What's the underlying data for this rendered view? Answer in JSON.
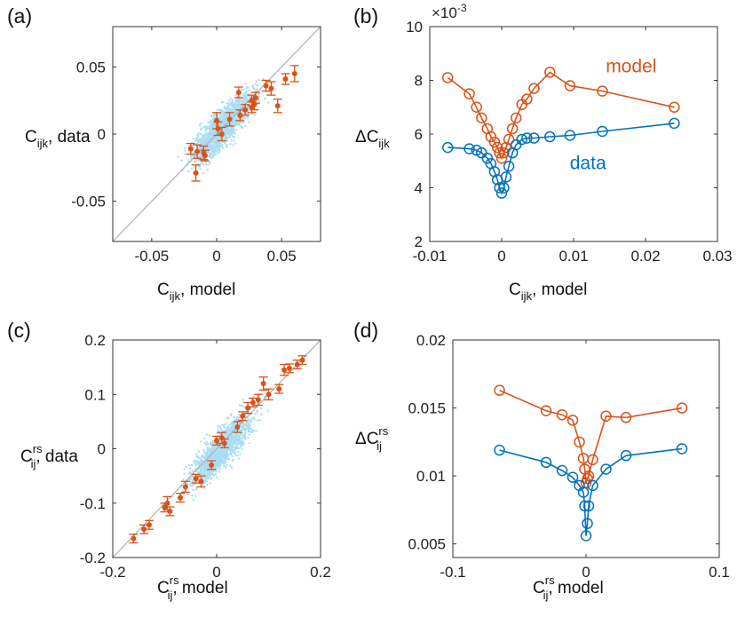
{
  "colors": {
    "model": "#d95319",
    "data": "#0072bd",
    "cloud": "#a9def5",
    "diag": "#b0b0b0"
  },
  "chart_data": [
    {
      "panel_label": "(a)",
      "type": "scatter",
      "xlabel": {
        "main": "C",
        "sub": "ijk",
        "rest": ", model"
      },
      "ylabel": {
        "main": "C",
        "sub": "ijk",
        "rest": ", data"
      },
      "xlim": [
        -0.08,
        0.08
      ],
      "ylim": [
        -0.08,
        0.08
      ],
      "xticks": [
        -0.05,
        0,
        0.05
      ],
      "xtick_labels": [
        "-0.05",
        "0",
        "0.05"
      ],
      "yticks": [
        -0.05,
        0,
        0.05
      ],
      "ytick_labels": [
        "-0.05",
        "0",
        "0.05"
      ],
      "diagonal": true,
      "cloud": {
        "center": [
          0.005,
          0.005
        ],
        "spread": 0.02
      },
      "points": [
        {
          "x": -0.02,
          "y": -0.011,
          "err": 0.004
        },
        {
          "x": -0.016,
          "y": -0.029,
          "err": 0.006
        },
        {
          "x": -0.015,
          "y": -0.013,
          "err": 0.005
        },
        {
          "x": -0.01,
          "y": -0.014,
          "err": 0.005
        },
        {
          "x": -0.009,
          "y": -0.016,
          "err": 0.004
        },
        {
          "x": 0.0,
          "y": 0.01,
          "err": 0.006
        },
        {
          "x": 0.001,
          "y": 0.004,
          "err": 0.005
        },
        {
          "x": 0.004,
          "y": 0.0,
          "err": 0.005
        },
        {
          "x": 0.01,
          "y": 0.011,
          "err": 0.005
        },
        {
          "x": 0.017,
          "y": 0.031,
          "err": 0.004
        },
        {
          "x": 0.018,
          "y": 0.014,
          "err": 0.004
        },
        {
          "x": 0.022,
          "y": 0.018,
          "err": 0.004
        },
        {
          "x": 0.027,
          "y": 0.02,
          "err": 0.004
        },
        {
          "x": 0.027,
          "y": 0.025,
          "err": 0.004
        },
        {
          "x": 0.029,
          "y": 0.022,
          "err": 0.004
        },
        {
          "x": 0.03,
          "y": 0.027,
          "err": 0.004
        },
        {
          "x": 0.038,
          "y": 0.036,
          "err": 0.004
        },
        {
          "x": 0.042,
          "y": 0.034,
          "err": 0.005
        },
        {
          "x": 0.047,
          "y": 0.021,
          "err": 0.005
        },
        {
          "x": 0.053,
          "y": 0.041,
          "err": 0.004
        },
        {
          "x": 0.06,
          "y": 0.045,
          "err": 0.006
        }
      ]
    },
    {
      "panel_label": "(b)",
      "type": "line",
      "xlabel": {
        "main": "C",
        "sub": "ijk",
        "rest": ", model"
      },
      "ylabel": {
        "main": "ΔC",
        "sub": "ijk",
        "rest": ""
      },
      "xlim": [
        -0.01,
        0.03
      ],
      "ylim": [
        2,
        10
      ],
      "xticks": [
        -0.01,
        0,
        0.01,
        0.02,
        0.03
      ],
      "xtick_labels": [
        "-0.01",
        "0",
        "0.01",
        "0.02",
        "0.03"
      ],
      "yticks": [
        2,
        4,
        6,
        8,
        10
      ],
      "ytick_labels": [
        "2",
        "4",
        "6",
        "8",
        "10"
      ],
      "y_exponent": "×10",
      "y_exponent_power": "-3",
      "series": [
        {
          "name": "model",
          "color": "model",
          "x": [
            -0.0075,
            -0.0045,
            -0.0035,
            -0.0028,
            -0.002,
            -0.0015,
            -0.001,
            -0.0006,
            -0.0003,
            0.0,
            0.0003,
            0.0006,
            0.001,
            0.0015,
            0.002,
            0.0028,
            0.0035,
            0.0045,
            0.0067,
            0.0095,
            0.014,
            0.024
          ],
          "y": [
            8.1,
            7.5,
            7.0,
            6.6,
            6.2,
            5.9,
            5.7,
            5.5,
            5.3,
            5.1,
            5.3,
            5.5,
            5.8,
            6.2,
            6.6,
            7.1,
            7.3,
            7.7,
            8.3,
            7.8,
            7.6,
            7.0
          ]
        },
        {
          "name": "data",
          "color": "data",
          "x": [
            -0.0075,
            -0.0045,
            -0.0035,
            -0.0028,
            -0.002,
            -0.0015,
            -0.001,
            -0.0006,
            -0.0003,
            0.0,
            0.0003,
            0.0006,
            0.001,
            0.0015,
            0.002,
            0.0028,
            0.0035,
            0.0045,
            0.0067,
            0.0095,
            0.014,
            0.024
          ],
          "y": [
            5.5,
            5.45,
            5.4,
            5.3,
            5.1,
            4.9,
            4.6,
            4.3,
            4.0,
            3.8,
            4.0,
            4.4,
            4.8,
            5.3,
            5.6,
            5.8,
            5.85,
            5.85,
            5.9,
            5.95,
            6.1,
            6.4
          ]
        }
      ],
      "annotations": [
        {
          "text": "model",
          "color": "model",
          "at": [
            0.018,
            8.3
          ]
        },
        {
          "text": "data",
          "color": "data",
          "at": [
            0.012,
            4.7
          ]
        }
      ]
    },
    {
      "panel_label": "(c)",
      "type": "scatter",
      "xlabel": {
        "main": "C",
        "sup": "rs",
        "sub": "ij",
        "rest": ", model"
      },
      "ylabel": {
        "main": "C",
        "sup": "rs",
        "sub": "ij",
        "rest": ", data"
      },
      "xlim": [
        -0.2,
        0.2
      ],
      "ylim": [
        -0.2,
        0.2
      ],
      "xticks": [
        -0.2,
        0,
        0.2
      ],
      "xtick_labels": [
        "-0.2",
        "0",
        "0.2"
      ],
      "yticks": [
        -0.2,
        -0.1,
        0,
        0.1,
        0.2
      ],
      "ytick_labels": [
        "-0.2",
        "-0.1",
        "0",
        "0.1",
        "0.2"
      ],
      "diagonal": true,
      "cloud": {
        "center": [
          0.01,
          0.0
        ],
        "spread": 0.05
      },
      "points": [
        {
          "x": -0.16,
          "y": -0.165,
          "err": 0.008
        },
        {
          "x": -0.14,
          "y": -0.148,
          "err": 0.008
        },
        {
          "x": -0.13,
          "y": -0.14,
          "err": 0.008
        },
        {
          "x": -0.1,
          "y": -0.108,
          "err": 0.008
        },
        {
          "x": -0.095,
          "y": -0.1,
          "err": 0.012
        },
        {
          "x": -0.09,
          "y": -0.115,
          "err": 0.008
        },
        {
          "x": -0.07,
          "y": -0.09,
          "err": 0.008
        },
        {
          "x": -0.06,
          "y": -0.07,
          "err": 0.01
        },
        {
          "x": -0.04,
          "y": -0.055,
          "err": 0.008
        },
        {
          "x": -0.03,
          "y": -0.06,
          "err": 0.01
        },
        {
          "x": -0.01,
          "y": -0.03,
          "err": 0.008
        },
        {
          "x": 0.0,
          "y": 0.015,
          "err": 0.008
        },
        {
          "x": 0.01,
          "y": 0.02,
          "err": 0.01
        },
        {
          "x": 0.015,
          "y": 0.01,
          "err": 0.008
        },
        {
          "x": 0.04,
          "y": 0.04,
          "err": 0.01
        },
        {
          "x": 0.05,
          "y": 0.06,
          "err": 0.008
        },
        {
          "x": 0.06,
          "y": 0.075,
          "err": 0.01
        },
        {
          "x": 0.07,
          "y": 0.085,
          "err": 0.008
        },
        {
          "x": 0.08,
          "y": 0.09,
          "err": 0.01
        },
        {
          "x": 0.09,
          "y": 0.12,
          "err": 0.012
        },
        {
          "x": 0.1,
          "y": 0.1,
          "err": 0.01
        },
        {
          "x": 0.12,
          "y": 0.11,
          "err": 0.008
        },
        {
          "x": 0.13,
          "y": 0.145,
          "err": 0.01
        },
        {
          "x": 0.14,
          "y": 0.148,
          "err": 0.008
        },
        {
          "x": 0.155,
          "y": 0.155,
          "err": 0.008
        },
        {
          "x": 0.165,
          "y": 0.163,
          "err": 0.008
        }
      ]
    },
    {
      "panel_label": "(d)",
      "type": "line",
      "xlabel": {
        "main": "C",
        "sup": "rs",
        "sub": "ij",
        "rest": ", model"
      },
      "ylabel": {
        "main": "ΔC",
        "sup": "rs",
        "sub": "ij",
        "rest": ""
      },
      "xlim": [
        -0.1,
        0.1
      ],
      "ylim": [
        0.004,
        0.02
      ],
      "xticks": [
        -0.1,
        0,
        0.1
      ],
      "xtick_labels": [
        "-0.1",
        "0",
        "0.1"
      ],
      "yticks": [
        0.005,
        0.01,
        0.015,
        0.02
      ],
      "ytick_labels": [
        "0.005",
        "0.01",
        "0.015",
        "0.02"
      ],
      "series": [
        {
          "name": "model",
          "color": "model",
          "x": [
            -0.065,
            -0.03,
            -0.018,
            -0.01,
            -0.005,
            -0.002,
            -0.001,
            0.0,
            0.001,
            0.002,
            0.005,
            0.015,
            0.03,
            0.072
          ],
          "y": [
            0.0163,
            0.0148,
            0.0145,
            0.0141,
            0.0125,
            0.0113,
            0.0105,
            0.0095,
            0.0098,
            0.01,
            0.0112,
            0.0144,
            0.0143,
            0.015
          ]
        },
        {
          "name": "data",
          "color": "data",
          "x": [
            -0.065,
            -0.03,
            -0.018,
            -0.01,
            -0.005,
            -0.002,
            -0.001,
            0.0,
            0.001,
            0.002,
            0.005,
            0.015,
            0.03,
            0.072
          ],
          "y": [
            0.0119,
            0.011,
            0.0104,
            0.0099,
            0.0093,
            0.0088,
            0.0078,
            0.0056,
            0.0065,
            0.0078,
            0.0093,
            0.0105,
            0.0115,
            0.012
          ]
        }
      ]
    }
  ]
}
